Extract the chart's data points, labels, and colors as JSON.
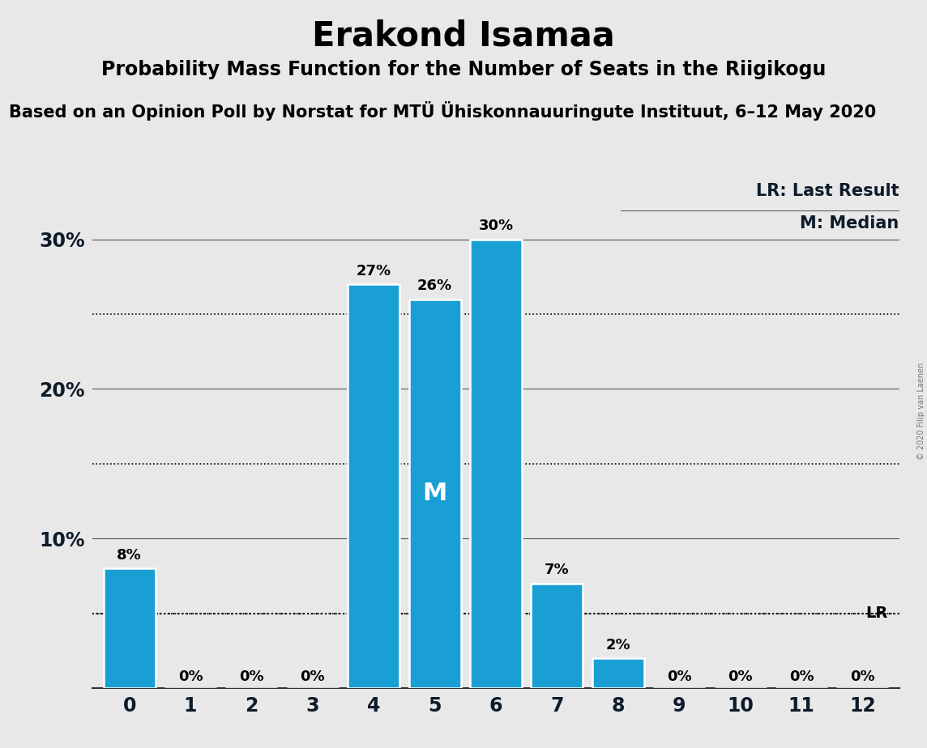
{
  "title": "Erakond Isamaa",
  "subtitle": "Probability Mass Function for the Number of Seats in the Riigikogu",
  "source": "Based on an Opinion Poll by Norstat for MTÜ Ühiskonnauuringute Instituut, 6–12 May 2020",
  "copyright": "© 2020 Filip van Laenen",
  "categories": [
    0,
    1,
    2,
    3,
    4,
    5,
    6,
    7,
    8,
    9,
    10,
    11,
    12
  ],
  "values": [
    8,
    0,
    0,
    0,
    27,
    26,
    30,
    7,
    2,
    0,
    0,
    0,
    0
  ],
  "bar_color": "#1a9fd4",
  "bar_edge_color": "white",
  "median_index": 5,
  "last_result": 5,
  "ylim": [
    0,
    34
  ],
  "ytick_labels_shown": [
    "10%",
    "20%",
    "30%"
  ],
  "ytick_shown": [
    10,
    20,
    30
  ],
  "ytick_dotted": [
    5,
    15,
    25
  ],
  "background_color": "#e8e8e8",
  "legend_lr": "LR: Last Result",
  "legend_m": "M: Median",
  "title_fontsize": 30,
  "subtitle_fontsize": 17,
  "source_fontsize": 15,
  "label_color": "#0d1b2a"
}
